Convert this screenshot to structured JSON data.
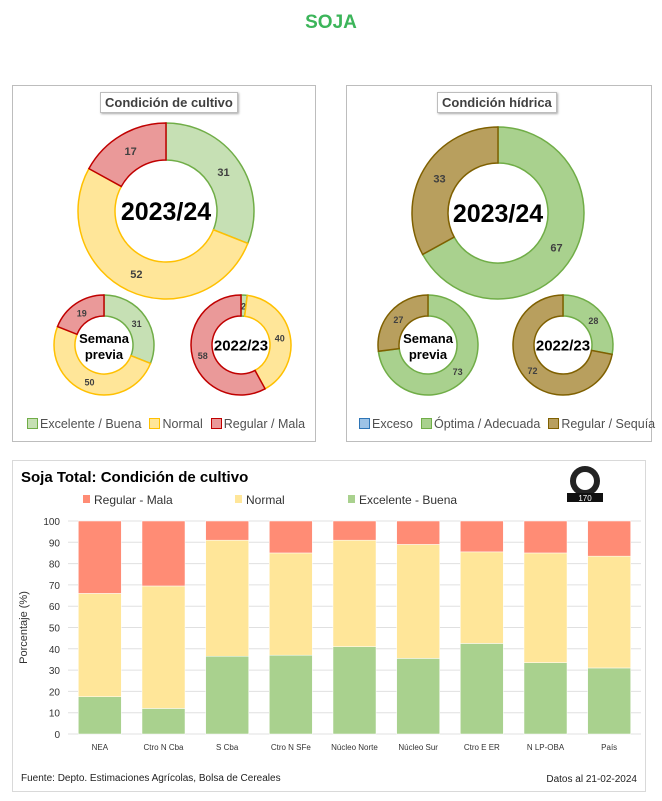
{
  "page_title": "SOJA",
  "colors": {
    "title": "#3cb55a"
  },
  "chart_data": [
    {
      "type": "pie",
      "title": "Condición de cultivo",
      "legend": [
        "Excelente / Buena",
        "Normal",
        "Regular / Mala"
      ],
      "legend_colors": [
        {
          "fill": "#c6e0b4",
          "stroke": "#70ad47"
        },
        {
          "fill": "#ffe699",
          "stroke": "#ffc000"
        },
        {
          "fill": "#ea9999",
          "stroke": "#c00000"
        }
      ],
      "donuts": [
        {
          "label": "2023/24",
          "values": [
            31,
            52,
            17
          ]
        },
        {
          "label": "Semana previa",
          "values": [
            31,
            50,
            19
          ]
        },
        {
          "label": "2022/23",
          "values": [
            2,
            40,
            58
          ]
        }
      ]
    },
    {
      "type": "pie",
      "title": "Condición hídrica",
      "legend": [
        "Exceso",
        "Óptima / Adecuada",
        "Regular / Sequía"
      ],
      "legend_colors": [
        {
          "fill": "#9dc3e6",
          "stroke": "#2e75b6"
        },
        {
          "fill": "#a9d18e",
          "stroke": "#70ad47"
        },
        {
          "fill": "#b89f5e",
          "stroke": "#7f6000"
        }
      ],
      "donuts": [
        {
          "label": "2023/24",
          "values": [
            0,
            67,
            33
          ]
        },
        {
          "label": "Semana previa",
          "values": [
            0,
            73,
            27
          ]
        },
        {
          "label": "2022/23",
          "values": [
            0,
            28,
            72
          ]
        }
      ]
    },
    {
      "type": "bar",
      "stacked": true,
      "title": "Soja Total: Condición de cultivo",
      "ylabel": "Porcentaje (%)",
      "xlabel": "",
      "ylim": [
        0,
        100
      ],
      "yticks": [
        0,
        10,
        20,
        30,
        40,
        50,
        60,
        70,
        80,
        90,
        100
      ],
      "grid": true,
      "legend_position": "top",
      "categories": [
        "NEA",
        "Ctro N Cba",
        "S Cba",
        "Ctro N SFe",
        "Núcleo Norte",
        "Núcleo Sur",
        "Ctro E ER",
        "N LP-OBA",
        "País"
      ],
      "series": [
        {
          "name": "Excelente - Buena",
          "color": "#a9d18e",
          "values": [
            17.5,
            12,
            36.5,
            37,
            41,
            35.5,
            42.5,
            33.5,
            31
          ]
        },
        {
          "name": "Normal",
          "color": "#ffe699",
          "values": [
            48.5,
            57.5,
            54.5,
            48,
            50,
            53.5,
            43,
            51.5,
            52.5
          ]
        },
        {
          "name": "Regular - Mala",
          "color": "#ff8c75",
          "values": [
            34,
            30.5,
            9,
            15,
            9,
            11,
            14.5,
            15,
            16.5
          ]
        }
      ],
      "legend_order": [
        "Regular - Mala",
        "Normal",
        "Excelente - Buena"
      ],
      "source": "Fuente: Depto. Estimaciones Agrícolas, Bolsa de Cereales",
      "date": "Datos al 21-02-2024",
      "logo_text": "170"
    }
  ]
}
